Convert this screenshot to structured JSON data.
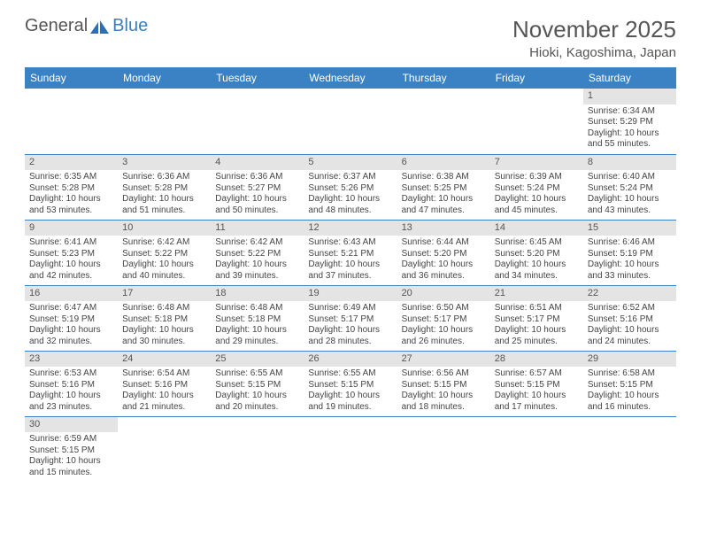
{
  "logo": {
    "general": "General",
    "blue": "Blue"
  },
  "header": {
    "month_title": "November 2025",
    "location": "Hioki, Kagoshima, Japan"
  },
  "colors": {
    "header_bg": "#3b82c4",
    "header_text": "#ffffff",
    "daynum_bg": "#e4e4e4",
    "row_border": "#3b82c4",
    "logo_blue": "#3b7fbf",
    "text": "#444444"
  },
  "weekdays": [
    "Sunday",
    "Monday",
    "Tuesday",
    "Wednesday",
    "Thursday",
    "Friday",
    "Saturday"
  ],
  "weeks": [
    [
      null,
      null,
      null,
      null,
      null,
      null,
      {
        "n": "1",
        "sunrise": "Sunrise: 6:34 AM",
        "sunset": "Sunset: 5:29 PM",
        "daylight": "Daylight: 10 hours and 55 minutes."
      }
    ],
    [
      {
        "n": "2",
        "sunrise": "Sunrise: 6:35 AM",
        "sunset": "Sunset: 5:28 PM",
        "daylight": "Daylight: 10 hours and 53 minutes."
      },
      {
        "n": "3",
        "sunrise": "Sunrise: 6:36 AM",
        "sunset": "Sunset: 5:28 PM",
        "daylight": "Daylight: 10 hours and 51 minutes."
      },
      {
        "n": "4",
        "sunrise": "Sunrise: 6:36 AM",
        "sunset": "Sunset: 5:27 PM",
        "daylight": "Daylight: 10 hours and 50 minutes."
      },
      {
        "n": "5",
        "sunrise": "Sunrise: 6:37 AM",
        "sunset": "Sunset: 5:26 PM",
        "daylight": "Daylight: 10 hours and 48 minutes."
      },
      {
        "n": "6",
        "sunrise": "Sunrise: 6:38 AM",
        "sunset": "Sunset: 5:25 PM",
        "daylight": "Daylight: 10 hours and 47 minutes."
      },
      {
        "n": "7",
        "sunrise": "Sunrise: 6:39 AM",
        "sunset": "Sunset: 5:24 PM",
        "daylight": "Daylight: 10 hours and 45 minutes."
      },
      {
        "n": "8",
        "sunrise": "Sunrise: 6:40 AM",
        "sunset": "Sunset: 5:24 PM",
        "daylight": "Daylight: 10 hours and 43 minutes."
      }
    ],
    [
      {
        "n": "9",
        "sunrise": "Sunrise: 6:41 AM",
        "sunset": "Sunset: 5:23 PM",
        "daylight": "Daylight: 10 hours and 42 minutes."
      },
      {
        "n": "10",
        "sunrise": "Sunrise: 6:42 AM",
        "sunset": "Sunset: 5:22 PM",
        "daylight": "Daylight: 10 hours and 40 minutes."
      },
      {
        "n": "11",
        "sunrise": "Sunrise: 6:42 AM",
        "sunset": "Sunset: 5:22 PM",
        "daylight": "Daylight: 10 hours and 39 minutes."
      },
      {
        "n": "12",
        "sunrise": "Sunrise: 6:43 AM",
        "sunset": "Sunset: 5:21 PM",
        "daylight": "Daylight: 10 hours and 37 minutes."
      },
      {
        "n": "13",
        "sunrise": "Sunrise: 6:44 AM",
        "sunset": "Sunset: 5:20 PM",
        "daylight": "Daylight: 10 hours and 36 minutes."
      },
      {
        "n": "14",
        "sunrise": "Sunrise: 6:45 AM",
        "sunset": "Sunset: 5:20 PM",
        "daylight": "Daylight: 10 hours and 34 minutes."
      },
      {
        "n": "15",
        "sunrise": "Sunrise: 6:46 AM",
        "sunset": "Sunset: 5:19 PM",
        "daylight": "Daylight: 10 hours and 33 minutes."
      }
    ],
    [
      {
        "n": "16",
        "sunrise": "Sunrise: 6:47 AM",
        "sunset": "Sunset: 5:19 PM",
        "daylight": "Daylight: 10 hours and 32 minutes."
      },
      {
        "n": "17",
        "sunrise": "Sunrise: 6:48 AM",
        "sunset": "Sunset: 5:18 PM",
        "daylight": "Daylight: 10 hours and 30 minutes."
      },
      {
        "n": "18",
        "sunrise": "Sunrise: 6:48 AM",
        "sunset": "Sunset: 5:18 PM",
        "daylight": "Daylight: 10 hours and 29 minutes."
      },
      {
        "n": "19",
        "sunrise": "Sunrise: 6:49 AM",
        "sunset": "Sunset: 5:17 PM",
        "daylight": "Daylight: 10 hours and 28 minutes."
      },
      {
        "n": "20",
        "sunrise": "Sunrise: 6:50 AM",
        "sunset": "Sunset: 5:17 PM",
        "daylight": "Daylight: 10 hours and 26 minutes."
      },
      {
        "n": "21",
        "sunrise": "Sunrise: 6:51 AM",
        "sunset": "Sunset: 5:17 PM",
        "daylight": "Daylight: 10 hours and 25 minutes."
      },
      {
        "n": "22",
        "sunrise": "Sunrise: 6:52 AM",
        "sunset": "Sunset: 5:16 PM",
        "daylight": "Daylight: 10 hours and 24 minutes."
      }
    ],
    [
      {
        "n": "23",
        "sunrise": "Sunrise: 6:53 AM",
        "sunset": "Sunset: 5:16 PM",
        "daylight": "Daylight: 10 hours and 23 minutes."
      },
      {
        "n": "24",
        "sunrise": "Sunrise: 6:54 AM",
        "sunset": "Sunset: 5:16 PM",
        "daylight": "Daylight: 10 hours and 21 minutes."
      },
      {
        "n": "25",
        "sunrise": "Sunrise: 6:55 AM",
        "sunset": "Sunset: 5:15 PM",
        "daylight": "Daylight: 10 hours and 20 minutes."
      },
      {
        "n": "26",
        "sunrise": "Sunrise: 6:55 AM",
        "sunset": "Sunset: 5:15 PM",
        "daylight": "Daylight: 10 hours and 19 minutes."
      },
      {
        "n": "27",
        "sunrise": "Sunrise: 6:56 AM",
        "sunset": "Sunset: 5:15 PM",
        "daylight": "Daylight: 10 hours and 18 minutes."
      },
      {
        "n": "28",
        "sunrise": "Sunrise: 6:57 AM",
        "sunset": "Sunset: 5:15 PM",
        "daylight": "Daylight: 10 hours and 17 minutes."
      },
      {
        "n": "29",
        "sunrise": "Sunrise: 6:58 AM",
        "sunset": "Sunset: 5:15 PM",
        "daylight": "Daylight: 10 hours and 16 minutes."
      }
    ],
    [
      {
        "n": "30",
        "sunrise": "Sunrise: 6:59 AM",
        "sunset": "Sunset: 5:15 PM",
        "daylight": "Daylight: 10 hours and 15 minutes."
      },
      null,
      null,
      null,
      null,
      null,
      null
    ]
  ]
}
